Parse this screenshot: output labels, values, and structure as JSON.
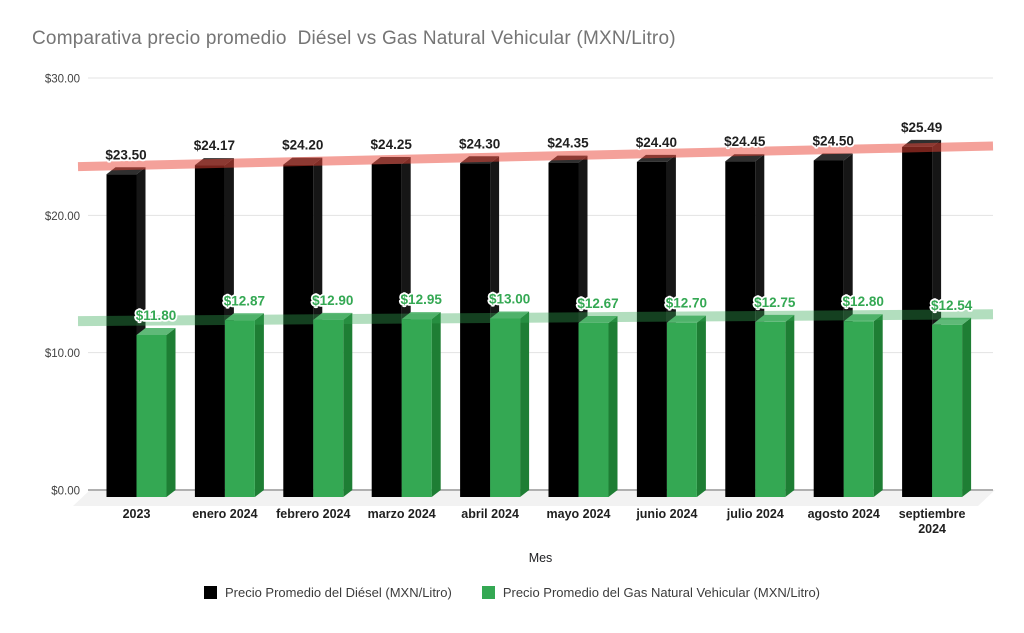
{
  "title": "Comparativa precio promedio  Diésel vs Gas Natural Vehicular (MXN/Litro)",
  "chart_data": {
    "type": "bar",
    "subtype": "3d-column",
    "categories": [
      "2023",
      "enero 2024",
      "febrero 2024",
      "marzo 2024",
      "abril 2024",
      "mayo 2024",
      "junio 2024",
      "julio 2024",
      "agosto 2024",
      "septiembre 2024"
    ],
    "series": [
      {
        "name": "Precio Promedio del Diésel (MXN/Litro)",
        "color": "#000000",
        "top_color": "#2f2f2f",
        "side_color": "#161616",
        "label_color": "#1f1f1f",
        "values": [
          23.5,
          24.17,
          24.2,
          24.25,
          24.3,
          24.35,
          24.4,
          24.45,
          24.5,
          25.49
        ]
      },
      {
        "name": "Precio Promedio del Gas Natural Vehicular (MXN/Litro)",
        "color": "#34a853",
        "top_color": "#5fb978",
        "side_color": "#1e7e34",
        "label_color": "#34a853",
        "values": [
          11.8,
          12.87,
          12.9,
          12.95,
          13.0,
          12.67,
          12.7,
          12.75,
          12.8,
          12.54
        ]
      }
    ],
    "trend_lines": [
      {
        "series": "diesel",
        "start_value": 23.55,
        "end_value": 25.05,
        "color": "rgba(234,67,53,0.5)",
        "width": 9
      },
      {
        "series": "gas",
        "start_value": 12.3,
        "end_value": 12.8,
        "color": "rgba(52,168,83,0.38)",
        "width": 10
      }
    ],
    "xlabel": "Mes",
    "ylabel": "",
    "ylim": [
      0,
      30
    ],
    "y_ticks": [
      {
        "value": 30,
        "label": "$30.00"
      },
      {
        "value": 20,
        "label": "$20.00"
      },
      {
        "value": 10,
        "label": "$10.00"
      },
      {
        "value": 0,
        "label": "$0.00"
      }
    ],
    "value_label_prefix": "$",
    "grid": true,
    "legend_position": "bottom"
  },
  "colors": {
    "gridline": "#e3e3e3",
    "baseline": "#b0b0b0",
    "floor": "#f2f2f2",
    "axis_text": "#424242",
    "category_text": "#1f1f1f",
    "title_text": "#757575"
  }
}
